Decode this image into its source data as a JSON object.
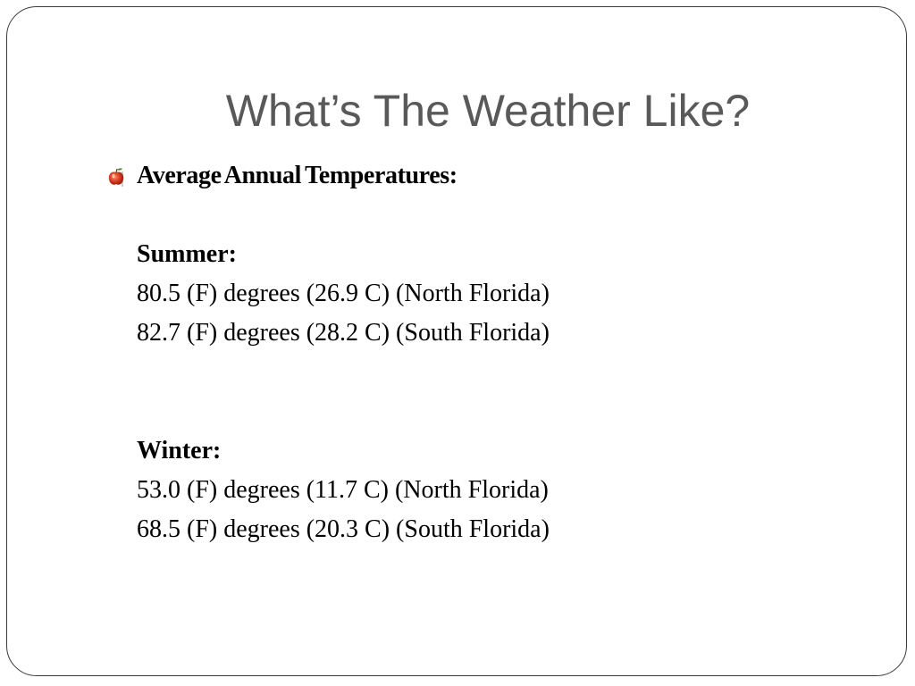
{
  "slide": {
    "title": "What’s The Weather Like?",
    "bullet_icon": "apple-bullet-icon",
    "heading": "Average Annual Temperatures:",
    "summer": {
      "label": "Summer:",
      "lines": [
        "80.5 (F) degrees (26.9 C) (North Florida)",
        "82.7 (F) degrees (28.2 C) (South Florida)"
      ]
    },
    "winter": {
      "label": "Winter:",
      "lines": [
        "53.0 (F) degrees (11.7 C) (North Florida)",
        "68.5 (F) degrees (20.3 C) (South Florida)"
      ]
    }
  },
  "colors": {
    "title": "#595959",
    "text": "#000000",
    "border": "#3a3a3a",
    "apple_red": "#d93a1e",
    "apple_leaf": "#3d8a2e"
  }
}
